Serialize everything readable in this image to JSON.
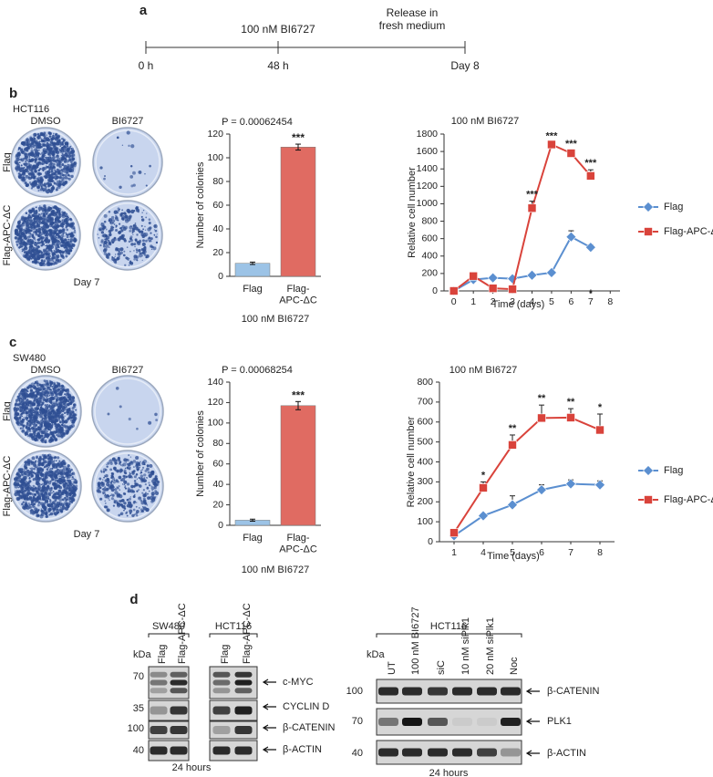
{
  "panel_a": {
    "label": "a",
    "times": [
      "0 h",
      "48 h",
      "Day 8"
    ],
    "treatment": "100 nM BI6727",
    "release": [
      "Release in",
      "fresh medium"
    ]
  },
  "panel_b": {
    "label": "b",
    "cell_line": "HCT116",
    "columns": [
      "DMSO",
      "BI6727"
    ],
    "rows": [
      "Flag",
      "Flag-APC-ΔC"
    ],
    "caption": "Day 7"
  },
  "panel_c": {
    "label": "c",
    "cell_line": "SW480",
    "columns": [
      "DMSO",
      "BI6727"
    ],
    "rows": [
      "Flag",
      "Flag-APC-ΔC"
    ],
    "caption": "Day 7"
  },
  "chart_data": [
    {
      "type": "bar",
      "title": "P = 0.00062454",
      "xlabel": "100 nM BI6727",
      "ylabel": "Number of colonies",
      "categories": [
        "Flag",
        "Flag-APC-ΔC"
      ],
      "values": [
        11,
        109
      ],
      "errors": [
        1,
        2.5
      ],
      "significance": [
        null,
        "***"
      ],
      "colors": [
        "#9cc3e6",
        "#e06b62"
      ],
      "ylim": [
        0,
        120
      ],
      "yticks": [
        0,
        20,
        40,
        60,
        80,
        100,
        120
      ],
      "grid": false
    },
    {
      "type": "line",
      "title": "100 nM BI6727",
      "xlabel": "Time (days)",
      "ylabel": "Relative cell number",
      "categories": [
        "0",
        "1",
        "2",
        "3",
        "4",
        "5",
        "6",
        "7",
        "8"
      ],
      "series": [
        {
          "name": "Flag",
          "color": "#5b8fd0",
          "marker": "diamond",
          "values": [
            0,
            130,
            150,
            140,
            180,
            210,
            620,
            500,
            null
          ],
          "errors": [
            5,
            15,
            15,
            15,
            15,
            20,
            70,
            30,
            null
          ],
          "significance": [
            null,
            null,
            null,
            null,
            null,
            null,
            null,
            "*",
            null
          ]
        },
        {
          "name": "Flag-APC-ΔC",
          "color": "#d9433b",
          "marker": "square",
          "values": [
            0,
            170,
            30,
            20,
            950,
            1680,
            1580,
            1320,
            null
          ],
          "errors": [
            5,
            20,
            5,
            5,
            80,
            20,
            30,
            70,
            null
          ],
          "significance": [
            null,
            null,
            null,
            null,
            "***",
            "***",
            "***",
            "***",
            null
          ]
        }
      ],
      "ylim": [
        0,
        1800
      ],
      "yticks": [
        0,
        200,
        400,
        600,
        800,
        1000,
        1200,
        1400,
        1600,
        1800
      ],
      "grid": false,
      "legend": "right"
    },
    {
      "type": "bar",
      "title": "P = 0.00068254",
      "xlabel": "100 nM BI6727",
      "ylabel": "Number of colonies",
      "categories": [
        "Flag",
        "Flag-APC-ΔC"
      ],
      "values": [
        5,
        117
      ],
      "errors": [
        1,
        4
      ],
      "significance": [
        null,
        "***"
      ],
      "colors": [
        "#9cc3e6",
        "#e06b62"
      ],
      "ylim": [
        0,
        140
      ],
      "yticks": [
        0,
        20,
        40,
        60,
        80,
        100,
        120,
        140
      ],
      "grid": false
    },
    {
      "type": "line",
      "title": "100 nM BI6727",
      "xlabel": "Time (days)",
      "ylabel": "Relative cell number",
      "categories": [
        "1",
        "4",
        "5",
        "6",
        "7",
        "8"
      ],
      "series": [
        {
          "name": "Flag",
          "color": "#5b8fd0",
          "marker": "diamond",
          "values": [
            30,
            130,
            185,
            260,
            290,
            285
          ],
          "errors": [
            10,
            10,
            45,
            25,
            20,
            20
          ],
          "significance": [
            null,
            null,
            null,
            null,
            null,
            null
          ]
        },
        {
          "name": "Flag-APC-ΔC",
          "color": "#d9433b",
          "marker": "square",
          "values": [
            45,
            270,
            485,
            620,
            622,
            560
          ],
          "errors": [
            10,
            30,
            50,
            65,
            45,
            80
          ],
          "significance": [
            null,
            "*",
            "**",
            "**",
            "**",
            "*"
          ]
        }
      ],
      "ylim": [
        0,
        800
      ],
      "yticks": [
        0,
        100,
        200,
        300,
        400,
        500,
        600,
        700,
        800
      ],
      "grid": false,
      "legend": "right"
    }
  ],
  "panel_d": {
    "label": "d",
    "left_blot": {
      "groups": [
        {
          "cell_line": "SW480",
          "lanes": [
            "Flag",
            "Flag-APC-ΔC"
          ]
        },
        {
          "cell_line": "HCT116",
          "lanes": [
            "Flag",
            "Flag-APC-ΔC"
          ]
        }
      ],
      "unit": "kDa",
      "markers": [
        70,
        35,
        100,
        40
      ],
      "proteins": [
        "c-MYC",
        "CYCLIN D",
        "β-CATENIN",
        "β-ACTIN"
      ],
      "caption": "24 hours"
    },
    "right_blot": {
      "cell_line": "HCT116",
      "lanes": [
        "UT",
        "100 nM BI6727",
        "siC",
        "10 nM siPlk1",
        "20 nM siPlk1",
        "Noc"
      ],
      "unit": "kDa",
      "markers": [
        100,
        70,
        40
      ],
      "proteins": [
        "β-CATENIN",
        "PLK1",
        "β-ACTIN"
      ],
      "caption": "24 hours"
    }
  }
}
